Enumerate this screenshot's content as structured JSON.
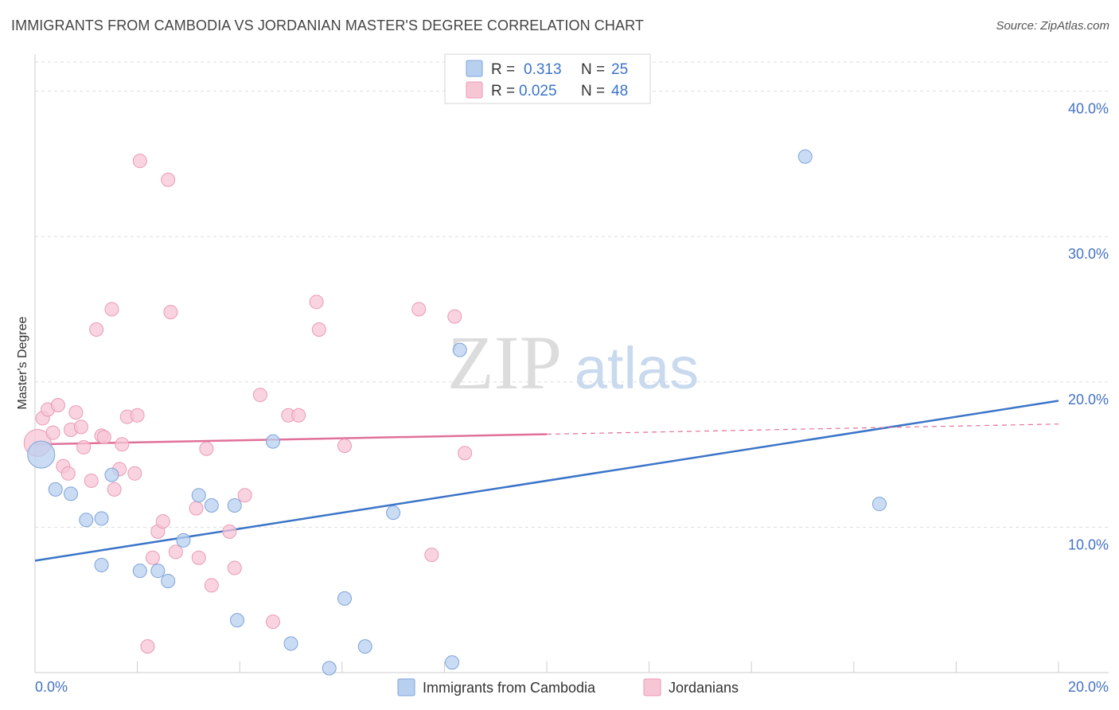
{
  "title": "IMMIGRANTS FROM CAMBODIA VS JORDANIAN MASTER'S DEGREE CORRELATION CHART",
  "source": "Source: ZipAtlas.com",
  "watermark": {
    "zip": "ZIP",
    "atlas": "atlas"
  },
  "colors": {
    "blue": "#3b74c8",
    "blue_fill": "#b8d0f0",
    "pink": "#e07099",
    "pink_fill": "#f7c6d5",
    "grid": "#dddddd"
  },
  "chart_data": {
    "type": "scatter",
    "title": "IMMIGRANTS FROM CAMBODIA VS JORDANIAN MASTER'S DEGREE CORRELATION CHART",
    "xlabel": "",
    "ylabel": "Master's Degree",
    "xlim": [
      0,
      20
    ],
    "ylim": [
      0,
      42
    ],
    "x_tick_labels": [
      "0.0%",
      "20.0%"
    ],
    "y_ticks": [
      10,
      20,
      30,
      40
    ],
    "y_tick_labels": [
      "10.0%",
      "20.0%",
      "30.0%",
      "40.0%"
    ],
    "legend": [
      {
        "r_label": "R =",
        "r_value": "0.313",
        "n_label": "N =",
        "n_value": "25"
      },
      {
        "r_label": "R =",
        "r_value": "0.025",
        "n_label": "N =",
        "n_value": "48"
      }
    ],
    "series": [
      {
        "name": "Immigrants from Cambodia",
        "color": "#3b74c8",
        "trend": {
          "x0": 0,
          "y0": 7.7,
          "x1": 20,
          "y1": 18.7
        },
        "points": [
          {
            "x": 0.12,
            "y": 15.0,
            "big": true
          },
          {
            "x": 0.4,
            "y": 12.6
          },
          {
            "x": 0.7,
            "y": 12.3
          },
          {
            "x": 1.0,
            "y": 10.5
          },
          {
            "x": 1.3,
            "y": 10.6
          },
          {
            "x": 1.5,
            "y": 13.6
          },
          {
            "x": 1.3,
            "y": 7.4
          },
          {
            "x": 2.05,
            "y": 7.0
          },
          {
            "x": 2.4,
            "y": 7.0
          },
          {
            "x": 2.6,
            "y": 6.3
          },
          {
            "x": 2.9,
            "y": 9.1
          },
          {
            "x": 3.2,
            "y": 12.2
          },
          {
            "x": 3.45,
            "y": 11.5
          },
          {
            "x": 3.9,
            "y": 11.5
          },
          {
            "x": 3.95,
            "y": 3.6
          },
          {
            "x": 4.65,
            "y": 15.9
          },
          {
            "x": 5.0,
            "y": 2.0
          },
          {
            "x": 5.75,
            "y": 0.3
          },
          {
            "x": 6.05,
            "y": 5.1
          },
          {
            "x": 6.45,
            "y": 1.8
          },
          {
            "x": 7.0,
            "y": 11.0
          },
          {
            "x": 8.15,
            "y": 0.7
          },
          {
            "x": 8.3,
            "y": 22.2
          },
          {
            "x": 15.05,
            "y": 35.5
          },
          {
            "x": 16.5,
            "y": 11.6
          }
        ]
      },
      {
        "name": "Jordanians",
        "color": "#e07099",
        "trend": {
          "x0": 0,
          "y0": 15.7,
          "x1": 10,
          "y1": 16.4
        },
        "trend_dashed": {
          "x0": 10,
          "y0": 16.4,
          "x1": 20,
          "y1": 17.1
        },
        "points": [
          {
            "x": 0.05,
            "y": 15.8,
            "big": true
          },
          {
            "x": 0.15,
            "y": 17.5
          },
          {
            "x": 0.25,
            "y": 18.1
          },
          {
            "x": 0.35,
            "y": 16.5
          },
          {
            "x": 0.45,
            "y": 18.4
          },
          {
            "x": 0.55,
            "y": 14.2
          },
          {
            "x": 0.65,
            "y": 13.7
          },
          {
            "x": 0.7,
            "y": 16.7
          },
          {
            "x": 0.8,
            "y": 17.9
          },
          {
            "x": 0.9,
            "y": 16.9
          },
          {
            "x": 0.95,
            "y": 15.5
          },
          {
            "x": 1.1,
            "y": 13.2
          },
          {
            "x": 1.2,
            "y": 23.6
          },
          {
            "x": 1.3,
            "y": 16.3
          },
          {
            "x": 1.35,
            "y": 16.2
          },
          {
            "x": 1.5,
            "y": 25.0
          },
          {
            "x": 1.55,
            "y": 12.6
          },
          {
            "x": 1.65,
            "y": 14.0
          },
          {
            "x": 1.7,
            "y": 15.7
          },
          {
            "x": 1.8,
            "y": 17.6
          },
          {
            "x": 1.95,
            "y": 13.7
          },
          {
            "x": 2.0,
            "y": 17.7
          },
          {
            "x": 2.05,
            "y": 35.2
          },
          {
            "x": 2.2,
            "y": 1.8
          },
          {
            "x": 2.3,
            "y": 7.9
          },
          {
            "x": 2.4,
            "y": 9.7
          },
          {
            "x": 2.5,
            "y": 10.4
          },
          {
            "x": 2.6,
            "y": 33.9
          },
          {
            "x": 2.65,
            "y": 24.8
          },
          {
            "x": 2.75,
            "y": 8.3
          },
          {
            "x": 3.15,
            "y": 11.3
          },
          {
            "x": 3.2,
            "y": 7.9
          },
          {
            "x": 3.35,
            "y": 15.4
          },
          {
            "x": 3.45,
            "y": 6.0
          },
          {
            "x": 3.8,
            "y": 9.7
          },
          {
            "x": 3.9,
            "y": 7.2
          },
          {
            "x": 4.1,
            "y": 12.2
          },
          {
            "x": 4.4,
            "y": 19.1
          },
          {
            "x": 4.65,
            "y": 3.5
          },
          {
            "x": 4.95,
            "y": 17.7
          },
          {
            "x": 5.15,
            "y": 17.7
          },
          {
            "x": 5.5,
            "y": 25.5
          },
          {
            "x": 5.55,
            "y": 23.6
          },
          {
            "x": 6.05,
            "y": 15.6
          },
          {
            "x": 7.5,
            "y": 25.0
          },
          {
            "x": 7.75,
            "y": 8.1
          },
          {
            "x": 8.2,
            "y": 24.5
          },
          {
            "x": 8.4,
            "y": 15.1
          }
        ]
      }
    ]
  }
}
